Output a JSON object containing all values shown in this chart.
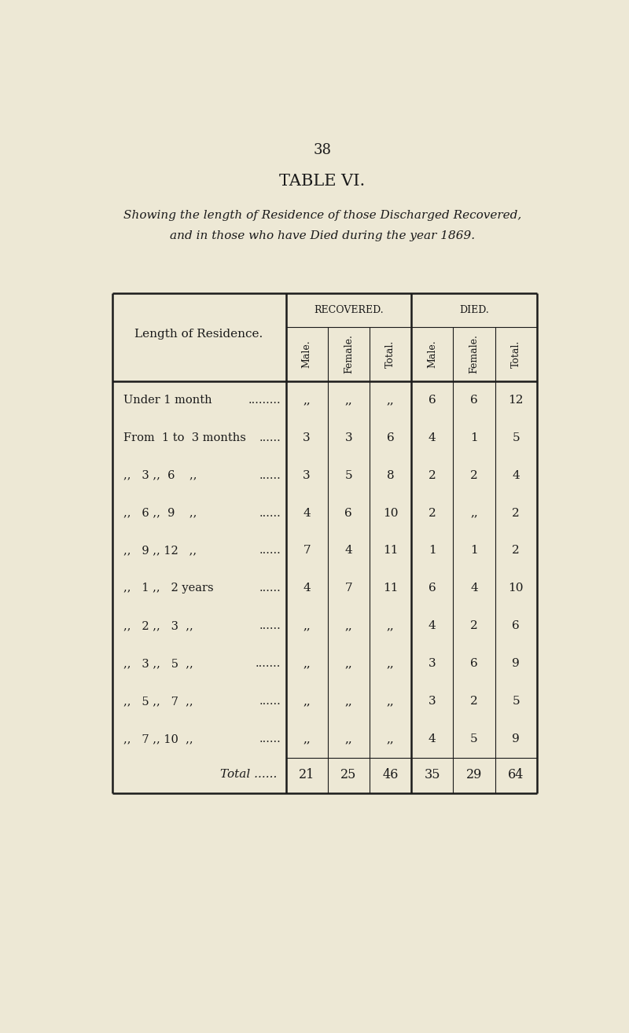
{
  "page_number": "38",
  "title": "TABLE VI.",
  "subtitle_line1": "Showing the length of Residence of those Discharged Recovered,",
  "subtitle_line2": "and in those who have Died during the year 1869.",
  "bg_color": "#ede8d5",
  "text_color": "#1a1a1a",
  "col_header_recovered": "RECOVERED.",
  "col_header_died": "DIED.",
  "col_subheaders": [
    "Male.",
    "Female.",
    "Total.",
    "Male.",
    "Female.",
    "Total."
  ],
  "row_label_col": "Length of Residence.",
  "ditto": "„„",
  "rows": [
    {
      "label_parts": [
        "Under 1 month",
        ".........",
        ""
      ],
      "rec_male": ",,",
      "rec_female": ",,",
      "rec_total": ",,",
      "died_male": "6",
      "died_female": "6",
      "died_total": "12"
    },
    {
      "label_parts": [
        "From  1 to  3 months",
        "......",
        ""
      ],
      "rec_male": "3",
      "rec_female": "3",
      "rec_total": "6",
      "died_male": "4",
      "died_female": "1",
      "died_total": "5"
    },
    {
      "label_parts": [
        ",,   3 ,,  6    ,,",
        "......",
        ""
      ],
      "rec_male": "3",
      "rec_female": "5",
      "rec_total": "8",
      "died_male": "2",
      "died_female": "2",
      "died_total": "4"
    },
    {
      "label_parts": [
        ",,   6 ,,  9    ,,",
        "......",
        ""
      ],
      "rec_male": "4",
      "rec_female": "6",
      "rec_total": "10",
      "died_male": "2",
      "died_female": ",,",
      "died_total": "2"
    },
    {
      "label_parts": [
        ",,   9 ,, 12   ,,",
        "......",
        ""
      ],
      "rec_male": "7",
      "rec_female": "4",
      "rec_total": "11",
      "died_male": "1",
      "died_female": "1",
      "died_total": "2"
    },
    {
      "label_parts": [
        ",,   1 ,,   2 years",
        "......",
        ""
      ],
      "rec_male": "4",
      "rec_female": "7",
      "rec_total": "11",
      "died_male": "6",
      "died_female": "4",
      "died_total": "10"
    },
    {
      "label_parts": [
        ",,   2 ,,   3  ,,",
        "......",
        ""
      ],
      "rec_male": ",,",
      "rec_female": ",,",
      "rec_total": ",,",
      "died_male": "4",
      "died_female": "2",
      "died_total": "6"
    },
    {
      "label_parts": [
        ",,   3 ,,   5  ,,",
        ".......",
        ""
      ],
      "rec_male": ",,",
      "rec_female": ",,",
      "rec_total": ",,",
      "died_male": "3",
      "died_female": "6",
      "died_total": "9"
    },
    {
      "label_parts": [
        ",,   5 ,,   7  ,,",
        "......",
        ""
      ],
      "rec_male": ",,",
      "rec_female": ",,",
      "rec_total": ",,",
      "died_male": "3",
      "died_female": "2",
      "died_total": "5"
    },
    {
      "label_parts": [
        ",,   7 ,, 10  ,,",
        "......",
        ""
      ],
      "rec_male": ",,",
      "rec_female": ",,",
      "rec_total": ",,",
      "died_male": "4",
      "died_female": "5",
      "died_total": "9"
    }
  ],
  "total_row": {
    "label": "Total ......",
    "rec_male": "21",
    "rec_female": "25",
    "rec_total": "46",
    "died_male": "35",
    "died_female": "29",
    "died_total": "64"
  },
  "figsize": [
    8.0,
    13.14
  ],
  "dpi": 100
}
